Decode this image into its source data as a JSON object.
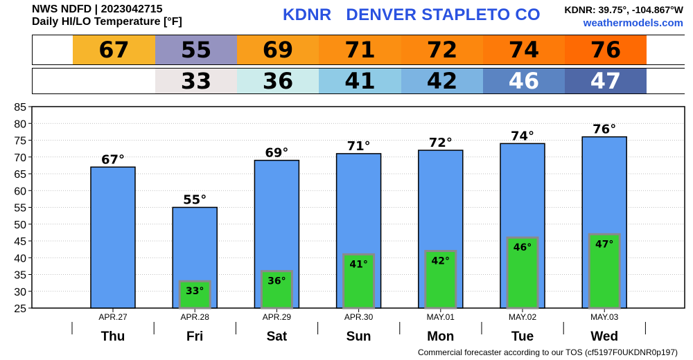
{
  "header": {
    "line1": "NWS NDFD | 2023042715",
    "line2": "Daily HI/LO Temperature [°F]",
    "station": "KDNR   DENVER STAPLETO CO",
    "coords": "KDNR: 39.75°, -104.867°W",
    "site": "weathermodels.com"
  },
  "hi_strip": [
    {
      "text": "",
      "color": "#ffffff",
      "text_color": "#000000"
    },
    {
      "text": "67",
      "color": "#f7b52c",
      "text_color": "#000000"
    },
    {
      "text": "55",
      "color": "#9593c0",
      "text_color": "#000000"
    },
    {
      "text": "69",
      "color": "#f99e1c",
      "text_color": "#000000"
    },
    {
      "text": "71",
      "color": "#fb8f12",
      "text_color": "#000000"
    },
    {
      "text": "72",
      "color": "#fc870e",
      "text_color": "#000000"
    },
    {
      "text": "74",
      "color": "#fd7a09",
      "text_color": "#000000"
    },
    {
      "text": "76",
      "color": "#fe6a03",
      "text_color": "#000000"
    },
    {
      "text": "",
      "color": "#ffffff",
      "text_color": "#000000"
    }
  ],
  "lo_strip": [
    {
      "text": "",
      "color": "#ffffff",
      "text_color": "#000000"
    },
    {
      "text": "",
      "color": "#ffffff",
      "text_color": "#000000"
    },
    {
      "text": "33",
      "color": "#ece6e6",
      "text_color": "#000000"
    },
    {
      "text": "36",
      "color": "#ccecec",
      "text_color": "#000000"
    },
    {
      "text": "41",
      "color": "#8fcbe6",
      "text_color": "#000000"
    },
    {
      "text": "42",
      "color": "#7cb4e2",
      "text_color": "#000000"
    },
    {
      "text": "46",
      "color": "#5b84c2",
      "text_color": "#ffffff"
    },
    {
      "text": "47",
      "color": "#4f68a7",
      "text_color": "#ffffff"
    },
    {
      "text": "",
      "color": "#ffffff",
      "text_color": "#000000"
    }
  ],
  "chart_data": {
    "type": "bar",
    "dates": [
      "APR.27",
      "APR.28",
      "APR.29",
      "APR.30",
      "MAY.01",
      "MAY.02",
      "MAY.03"
    ],
    "categories": [
      "Thu",
      "Fri",
      "Sat",
      "Sun",
      "Mon",
      "Tue",
      "Wed"
    ],
    "series": [
      {
        "values": [
          67,
          55,
          69,
          71,
          72,
          74,
          76
        ],
        "labels": [
          "67°",
          "55°",
          "69°",
          "71°",
          "72°",
          "74°",
          "76°"
        ],
        "color": "#5b9cf2"
      },
      {
        "values": [
          null,
          33,
          36,
          41,
          42,
          46,
          47
        ],
        "labels": [
          "",
          "33°",
          "36°",
          "41°",
          "42°",
          "46°",
          "47°"
        ],
        "color": "#35d035"
      }
    ],
    "ylim": [
      25,
      85
    ],
    "yticks": [
      25,
      30,
      35,
      40,
      45,
      50,
      55,
      60,
      65,
      70,
      75,
      80,
      85
    ],
    "grid": true
  },
  "footer": "Commercial forecaster according to our TOS (cf5197F0UKDNR0p197)"
}
